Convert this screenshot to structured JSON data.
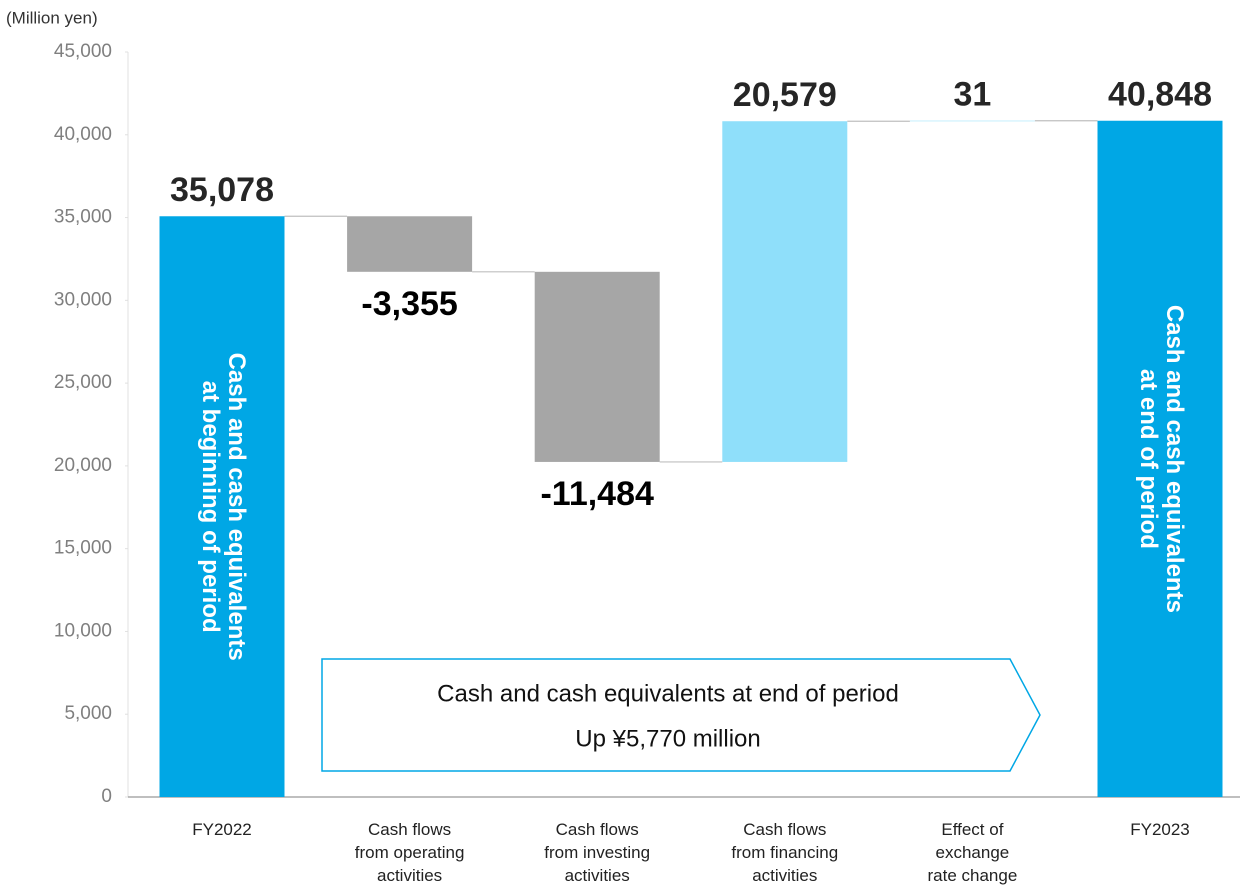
{
  "chart_data": {
    "type": "waterfall",
    "y_axis_label": "(Million yen)",
    "categories": [
      "FY2022",
      "Cash flows\nfrom operating\nactivities",
      "Cash flows\nfrom investing\nactivities",
      "Cash flows\nfrom financing\nactivities",
      "Effect of\nexchange\nrate change",
      "FY2023"
    ],
    "values": [
      35078,
      -3355,
      -11484,
      20579,
      31,
      40848
    ],
    "value_labels": [
      "35,078",
      "-3,355",
      "-11,484",
      "20,579",
      "31",
      "40,848"
    ],
    "measures": [
      "absolute",
      "relative",
      "relative",
      "relative",
      "relative",
      "absolute"
    ],
    "colors": {
      "total": "#00a7e5",
      "increase": "#8fdffa",
      "decrease": "#a6a6a6"
    },
    "start_bar_label": "Cash and cash equivalents\nat beginning of period",
    "end_bar_label": "Cash and cash equivalents\nat end of period",
    "annotation": [
      "Cash and cash equivalents at end of period",
      "Up ¥5,770 million"
    ],
    "ylim": [
      0,
      45000
    ],
    "yticks": [
      0,
      {
        "value": 5000,
        "label": "5,000"
      },
      {
        "value": 10000,
        "label": "10,000"
      },
      {
        "value": 15000,
        "label": "15,000"
      },
      {
        "value": 20000,
        "label": "20,000"
      },
      {
        "value": 25000,
        "label": "25,000"
      },
      {
        "value": 30000,
        "label": "30,000"
      },
      {
        "value": 35000,
        "label": "35,000"
      },
      {
        "value": 40000,
        "label": "40,000"
      },
      {
        "value": 45000,
        "label": "45,000"
      }
    ]
  }
}
